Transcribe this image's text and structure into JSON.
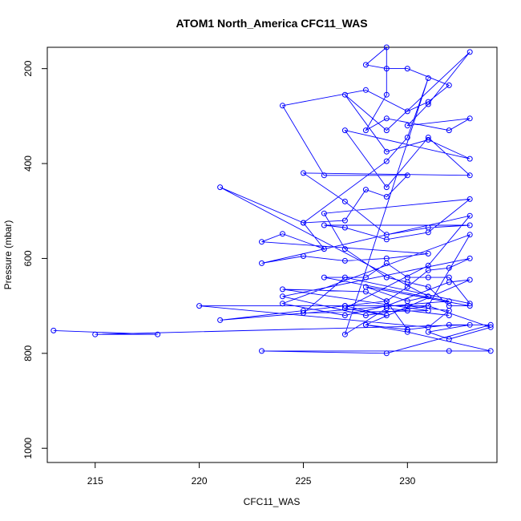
{
  "chart_data": {
    "type": "line",
    "title": "ATOM1 North_America CFC11_WAS",
    "xlabel": "CFC11_WAS",
    "ylabel": "Pressure (mbar)",
    "xlim": [
      212.7,
      234.3
    ],
    "ylim": [
      1030,
      155
    ],
    "y_reversed": true,
    "grid": false,
    "legend": "none",
    "xticks": [
      215,
      220,
      225,
      230
    ],
    "yticks": [
      200,
      400,
      600,
      800,
      1000
    ],
    "series": [
      {
        "color": "#0000ff",
        "marker": "open-circle",
        "points": [
          [
            213,
            752
          ],
          [
            218,
            760
          ],
          [
            215,
            760
          ],
          [
            233,
            740
          ],
          [
            231,
            755
          ],
          [
            232,
            770
          ],
          [
            234,
            745
          ],
          [
            231,
            700
          ],
          [
            220,
            700
          ],
          [
            231,
            745
          ],
          [
            232,
            710
          ],
          [
            230,
            700
          ],
          [
            227,
            700
          ],
          [
            225,
            710
          ],
          [
            221,
            730
          ],
          [
            232,
            690
          ],
          [
            226,
            640
          ],
          [
            228,
            640
          ],
          [
            229,
            610
          ],
          [
            230,
            640
          ],
          [
            231,
            640
          ],
          [
            232,
            640
          ],
          [
            233,
            695
          ],
          [
            227,
            640
          ],
          [
            225,
            715
          ],
          [
            231,
            710
          ],
          [
            224,
            665
          ],
          [
            228,
            670
          ],
          [
            229,
            690
          ],
          [
            230,
            660
          ],
          [
            231,
            625
          ],
          [
            232,
            620
          ],
          [
            233,
            600
          ],
          [
            224,
            680
          ],
          [
            228,
            720
          ],
          [
            231,
            700
          ],
          [
            233,
            550
          ],
          [
            224,
            695
          ],
          [
            227,
            720
          ],
          [
            229,
            700
          ],
          [
            232,
            650
          ],
          [
            233,
            645
          ],
          [
            228,
            740
          ],
          [
            230,
            750
          ],
          [
            232,
            740
          ],
          [
            234,
            740
          ],
          [
            229,
            800
          ],
          [
            223,
            795
          ],
          [
            232,
            795
          ],
          [
            234,
            795
          ],
          [
            230,
            755
          ],
          [
            228,
            740
          ],
          [
            230,
            750
          ],
          [
            229,
            690
          ],
          [
            227,
            700
          ],
          [
            229,
            720
          ],
          [
            227,
            705
          ],
          [
            231,
            615
          ],
          [
            233,
            510
          ],
          [
            223,
            610
          ],
          [
            225,
            595
          ],
          [
            227,
            605
          ],
          [
            229,
            600
          ],
          [
            231,
            590
          ],
          [
            223,
            565
          ],
          [
            224,
            548
          ],
          [
            226,
            580
          ],
          [
            225,
            525
          ],
          [
            227,
            520
          ],
          [
            228,
            455
          ],
          [
            229,
            470
          ],
          [
            230,
            425
          ],
          [
            226,
            425
          ],
          [
            224,
            278
          ],
          [
            228,
            245
          ],
          [
            230,
            290
          ],
          [
            231,
            270
          ],
          [
            232,
            235
          ],
          [
            230,
            200
          ],
          [
            229,
            200
          ],
          [
            228,
            192
          ],
          [
            229,
            155
          ],
          [
            229,
            255
          ],
          [
            228,
            330
          ],
          [
            229,
            305
          ],
          [
            232,
            330
          ],
          [
            233,
            305
          ],
          [
            230,
            320
          ],
          [
            231,
            275
          ],
          [
            233,
            165
          ],
          [
            229,
            330
          ],
          [
            227,
            255
          ],
          [
            229,
            375
          ],
          [
            231,
            350
          ],
          [
            233,
            390
          ],
          [
            227,
            330
          ],
          [
            229,
            450
          ],
          [
            231,
            345
          ],
          [
            233,
            425
          ],
          [
            225,
            420
          ],
          [
            227,
            480
          ],
          [
            229,
            550
          ],
          [
            231,
            535
          ],
          [
            233,
            530
          ],
          [
            226,
            530
          ],
          [
            227,
            535
          ],
          [
            229,
            560
          ],
          [
            231,
            545
          ],
          [
            233,
            475
          ],
          [
            226,
            505
          ],
          [
            227,
            580
          ],
          [
            229,
            640
          ],
          [
            230,
            650
          ],
          [
            231,
            660
          ],
          [
            232,
            700
          ],
          [
            233,
            700
          ],
          [
            228,
            660
          ],
          [
            230,
            690
          ],
          [
            231,
            680
          ],
          [
            221,
            450
          ],
          [
            225,
            525
          ],
          [
            229,
            395
          ],
          [
            230,
            345
          ],
          [
            231,
            220
          ],
          [
            227,
            760
          ],
          [
            229,
            705
          ],
          [
            230,
            710
          ],
          [
            232,
            720
          ]
        ]
      }
    ]
  }
}
